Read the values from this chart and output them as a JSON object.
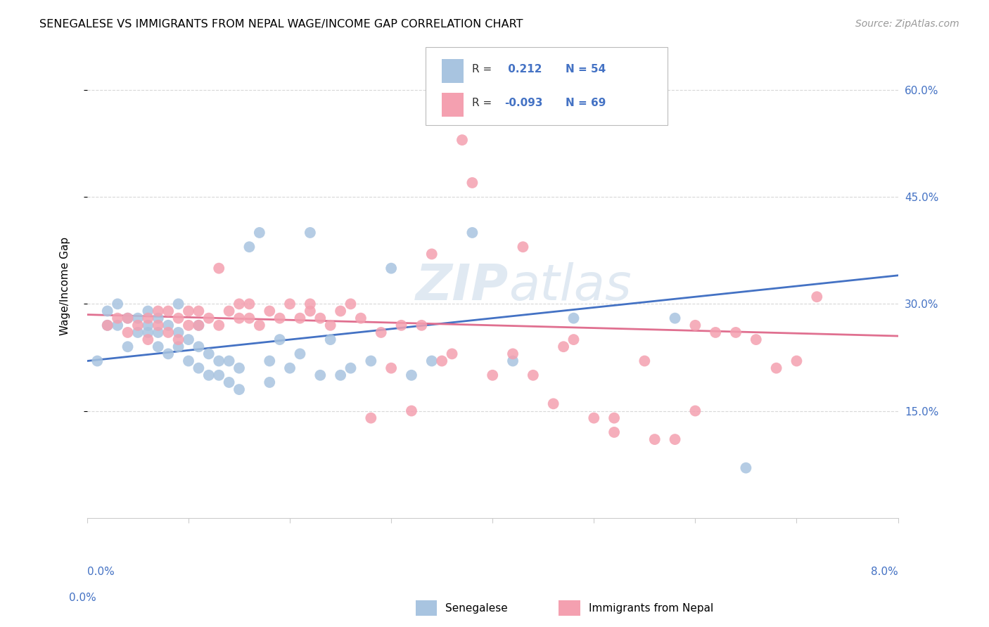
{
  "title": "SENEGALESE VS IMMIGRANTS FROM NEPAL WAGE/INCOME GAP CORRELATION CHART",
  "source": "Source: ZipAtlas.com",
  "ylabel": "Wage/Income Gap",
  "watermark_zip": "ZIP",
  "watermark_atlas": "atlas",
  "xlim": [
    0.0,
    0.08
  ],
  "ylim": [
    0.0,
    0.65
  ],
  "yticks": [
    0.15,
    0.3,
    0.45,
    0.6
  ],
  "ytick_labels": [
    "15.0%",
    "30.0%",
    "45.0%",
    "60.0%"
  ],
  "xticks": [
    0.0,
    0.01,
    0.02,
    0.03,
    0.04,
    0.05,
    0.06,
    0.07,
    0.08
  ],
  "blue_R": 0.212,
  "blue_N": 54,
  "pink_R": -0.093,
  "pink_N": 69,
  "blue_color": "#a8c4e0",
  "pink_color": "#f4a0b0",
  "blue_line_color": "#4472c4",
  "pink_line_color": "#e07090",
  "legend_label_blue": "Senegalese",
  "legend_label_pink": "Immigrants from Nepal",
  "blue_scatter_x": [
    0.001,
    0.002,
    0.002,
    0.003,
    0.003,
    0.004,
    0.004,
    0.005,
    0.005,
    0.006,
    0.006,
    0.006,
    0.007,
    0.007,
    0.007,
    0.008,
    0.008,
    0.009,
    0.009,
    0.009,
    0.01,
    0.01,
    0.011,
    0.011,
    0.011,
    0.012,
    0.012,
    0.013,
    0.013,
    0.014,
    0.014,
    0.015,
    0.015,
    0.016,
    0.017,
    0.018,
    0.018,
    0.019,
    0.02,
    0.021,
    0.022,
    0.023,
    0.024,
    0.025,
    0.026,
    0.028,
    0.03,
    0.032,
    0.034,
    0.038,
    0.042,
    0.048,
    0.058,
    0.065
  ],
  "blue_scatter_y": [
    0.22,
    0.27,
    0.29,
    0.27,
    0.3,
    0.24,
    0.28,
    0.26,
    0.28,
    0.26,
    0.27,
    0.29,
    0.24,
    0.26,
    0.28,
    0.23,
    0.27,
    0.24,
    0.26,
    0.3,
    0.22,
    0.25,
    0.21,
    0.24,
    0.27,
    0.2,
    0.23,
    0.2,
    0.22,
    0.19,
    0.22,
    0.18,
    0.21,
    0.38,
    0.4,
    0.19,
    0.22,
    0.25,
    0.21,
    0.23,
    0.4,
    0.2,
    0.25,
    0.2,
    0.21,
    0.22,
    0.35,
    0.2,
    0.22,
    0.4,
    0.22,
    0.28,
    0.28,
    0.07
  ],
  "pink_scatter_x": [
    0.002,
    0.003,
    0.004,
    0.004,
    0.005,
    0.006,
    0.006,
    0.007,
    0.007,
    0.008,
    0.008,
    0.009,
    0.009,
    0.01,
    0.01,
    0.011,
    0.011,
    0.012,
    0.013,
    0.013,
    0.014,
    0.015,
    0.015,
    0.016,
    0.016,
    0.017,
    0.018,
    0.019,
    0.02,
    0.021,
    0.022,
    0.022,
    0.023,
    0.024,
    0.025,
    0.026,
    0.027,
    0.028,
    0.029,
    0.03,
    0.031,
    0.032,
    0.033,
    0.035,
    0.037,
    0.04,
    0.042,
    0.044,
    0.047,
    0.05,
    0.052,
    0.055,
    0.058,
    0.06,
    0.062,
    0.064,
    0.066,
    0.068,
    0.07,
    0.072,
    0.034,
    0.036,
    0.038,
    0.043,
    0.046,
    0.048,
    0.052,
    0.056,
    0.06
  ],
  "pink_scatter_y": [
    0.27,
    0.28,
    0.26,
    0.28,
    0.27,
    0.25,
    0.28,
    0.27,
    0.29,
    0.26,
    0.29,
    0.25,
    0.28,
    0.27,
    0.29,
    0.27,
    0.29,
    0.28,
    0.27,
    0.35,
    0.29,
    0.28,
    0.3,
    0.28,
    0.3,
    0.27,
    0.29,
    0.28,
    0.3,
    0.28,
    0.29,
    0.3,
    0.28,
    0.27,
    0.29,
    0.3,
    0.28,
    0.14,
    0.26,
    0.21,
    0.27,
    0.15,
    0.27,
    0.22,
    0.53,
    0.2,
    0.23,
    0.2,
    0.24,
    0.14,
    0.12,
    0.22,
    0.11,
    0.15,
    0.26,
    0.26,
    0.25,
    0.21,
    0.22,
    0.31,
    0.37,
    0.23,
    0.47,
    0.38,
    0.16,
    0.25,
    0.14,
    0.11,
    0.27
  ]
}
